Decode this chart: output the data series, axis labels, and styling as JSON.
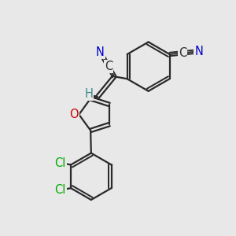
{
  "bg_color": "#e8e8e8",
  "bond_color": "#2a2a2a",
  "bond_width": 1.6,
  "atom_colors": {
    "N": "#0000cc",
    "O": "#cc0000",
    "Cl": "#00aa00",
    "C": "#2a2a2a",
    "H": "#3a8a8a"
  },
  "font_size": 10.5
}
